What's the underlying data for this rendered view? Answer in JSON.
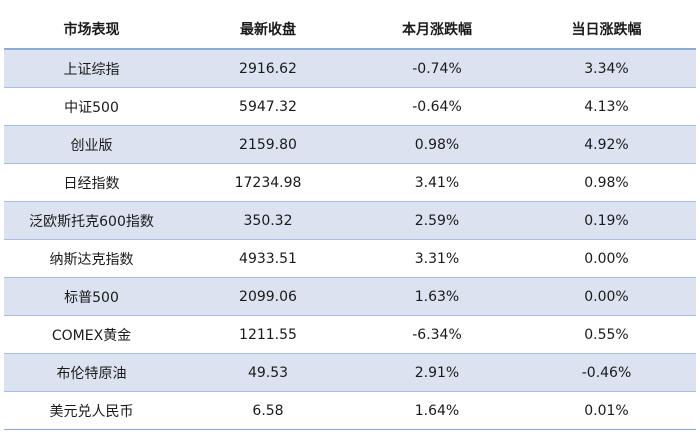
{
  "table": {
    "headers": [
      "市场表现",
      "最新收盘",
      "本月涨跌幅",
      "当日涨跌幅"
    ],
    "rows": [
      [
        "上证综指",
        "2916.62",
        "-0.74%",
        "3.34%"
      ],
      [
        "中证500",
        "5947.32",
        "-0.64%",
        "4.13%"
      ],
      [
        "创业版",
        "2159.80",
        "0.98%",
        "4.92%"
      ],
      [
        "日经指数",
        "17234.98",
        "3.41%",
        "0.98%"
      ],
      [
        "泛欧斯托克600指数",
        "350.32",
        "2.59%",
        "0.19%"
      ],
      [
        "纳斯达克指数",
        "4933.51",
        "3.31%",
        "0.00%"
      ],
      [
        "标普500",
        "2099.06",
        "1.63%",
        "0.00%"
      ],
      [
        "COMEX黄金",
        "1211.55",
        "-6.34%",
        "0.55%"
      ],
      [
        "布伦特原油",
        "49.53",
        "2.91%",
        "-0.46%"
      ],
      [
        "美元兑人民币",
        "6.58",
        "1.64%",
        "0.01%"
      ]
    ]
  },
  "colors": {
    "stripe": "#dbe3f1",
    "border": "#8eaad6",
    "text": "#1a1a1a"
  }
}
